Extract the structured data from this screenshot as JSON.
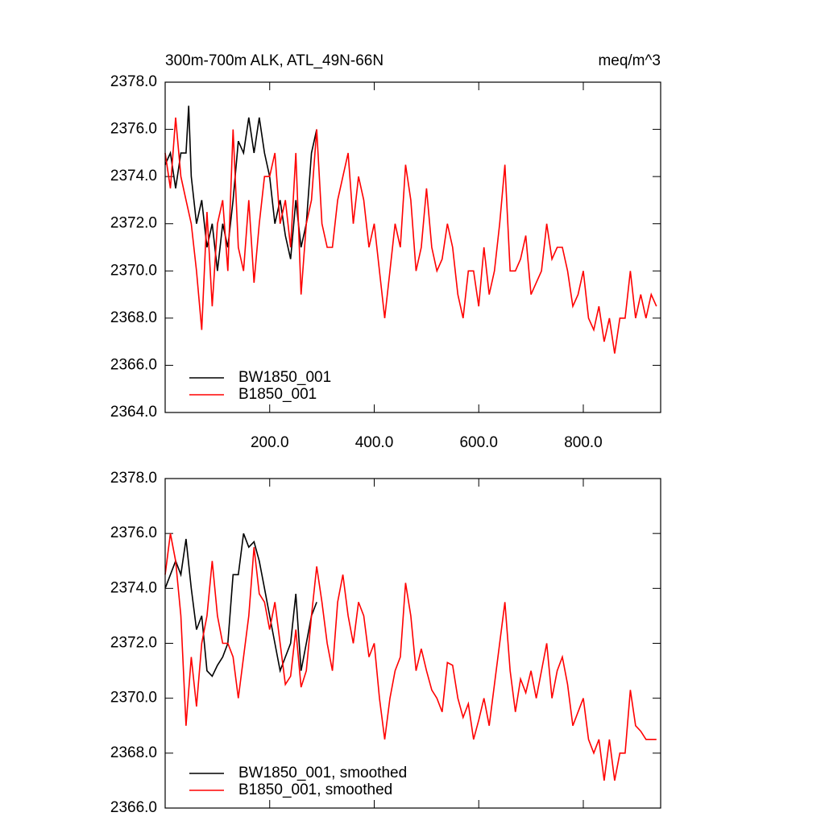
{
  "chart_data": [
    {
      "type": "line",
      "title": "300m-700m ALK, ATL_49N-66N",
      "units": "meq/m^3",
      "xlim": [
        0,
        948
      ],
      "ylim": [
        2364,
        2378
      ],
      "xticks": [
        {
          "value": 200,
          "label": "200.0"
        },
        {
          "value": 400,
          "label": "400.0"
        },
        {
          "value": 600,
          "label": "600.0"
        },
        {
          "value": 800,
          "label": "800.0"
        }
      ],
      "yticks": [
        {
          "value": 2364,
          "label": "2364.0"
        },
        {
          "value": 2366,
          "label": "2366.0"
        },
        {
          "value": 2368,
          "label": "2368.0"
        },
        {
          "value": 2370,
          "label": "2370.0"
        },
        {
          "value": 2372,
          "label": "2372.0"
        },
        {
          "value": 2374,
          "label": "2374.0"
        },
        {
          "value": 2376,
          "label": "2376.0"
        },
        {
          "value": 2378,
          "label": "2378.0"
        }
      ],
      "legend": "lower left",
      "series": [
        {
          "name": "BW1850_001",
          "color": "#000000",
          "x": [
            0,
            10,
            20,
            30,
            40,
            45,
            50,
            60,
            70,
            80,
            90,
            100,
            110,
            120,
            130,
            140,
            150,
            160,
            170,
            180,
            190,
            200,
            210,
            220,
            230,
            240,
            250,
            260,
            270,
            280,
            290
          ],
          "values": [
            2374.5,
            2375,
            2373.5,
            2375,
            2375,
            2377,
            2374,
            2372,
            2373,
            2371,
            2372,
            2370,
            2372,
            2371,
            2373,
            2375.5,
            2375,
            2376.5,
            2375,
            2376.5,
            2375,
            2374,
            2372,
            2373,
            2371.5,
            2370.5,
            2373,
            2371,
            2372,
            2375,
            2376
          ]
        },
        {
          "name": "B1850_001",
          "color": "#ff0000",
          "x": [
            0,
            10,
            20,
            30,
            40,
            50,
            60,
            70,
            80,
            90,
            100,
            110,
            120,
            130,
            140,
            150,
            160,
            170,
            180,
            190,
            200,
            210,
            220,
            230,
            240,
            250,
            260,
            270,
            280,
            290,
            300,
            310,
            320,
            330,
            340,
            350,
            360,
            370,
            380,
            390,
            400,
            410,
            420,
            430,
            440,
            450,
            460,
            470,
            480,
            490,
            500,
            510,
            520,
            530,
            540,
            550,
            560,
            570,
            580,
            590,
            600,
            610,
            620,
            630,
            640,
            650,
            660,
            670,
            680,
            690,
            700,
            710,
            720,
            730,
            740,
            750,
            760,
            770,
            780,
            790,
            800,
            810,
            820,
            830,
            840,
            850,
            860,
            870,
            880,
            890,
            900,
            910,
            920,
            930,
            940
          ],
          "values": [
            2375,
            2373.5,
            2376.5,
            2374,
            2373,
            2372,
            2370,
            2367.5,
            2372.5,
            2368.5,
            2372,
            2373,
            2370,
            2376,
            2371,
            2370,
            2373,
            2369.5,
            2372,
            2374,
            2374,
            2375,
            2372,
            2373,
            2371,
            2375,
            2369,
            2372,
            2373,
            2376,
            2372,
            2371,
            2371,
            2373,
            2374,
            2375,
            2372,
            2374,
            2373,
            2371,
            2372,
            2370,
            2368,
            2370,
            2372,
            2371,
            2374.5,
            2373,
            2370,
            2371,
            2373.5,
            2371,
            2370,
            2370.5,
            2372,
            2371,
            2369,
            2368,
            2370,
            2370,
            2368.5,
            2371,
            2369,
            2370,
            2372,
            2374.5,
            2370,
            2370,
            2370.5,
            2371.5,
            2369,
            2369.5,
            2370,
            2372,
            2370.5,
            2371,
            2371,
            2370,
            2368.5,
            2369,
            2370,
            2368,
            2367.5,
            2368.5,
            2367,
            2368,
            2366.5,
            2368,
            2368,
            2370,
            2368,
            2369,
            2368,
            2369,
            2368.5
          ]
        }
      ]
    },
    {
      "type": "line",
      "xlim": [
        0,
        948
      ],
      "ylim": [
        2366,
        2378
      ],
      "xticks": [
        200,
        400,
        600,
        800
      ],
      "yticks": [
        {
          "value": 2366,
          "label": "2366.0"
        },
        {
          "value": 2368,
          "label": "2368.0"
        },
        {
          "value": 2370,
          "label": "2370.0"
        },
        {
          "value": 2372,
          "label": "2372.0"
        },
        {
          "value": 2374,
          "label": "2374.0"
        },
        {
          "value": 2376,
          "label": "2376.0"
        },
        {
          "value": 2378,
          "label": "2378.0"
        }
      ],
      "legend": "lower left",
      "series": [
        {
          "name": "BW1850_001, smoothed",
          "color": "#000000",
          "x": [
            0,
            10,
            20,
            30,
            40,
            50,
            60,
            70,
            80,
            90,
            100,
            110,
            120,
            130,
            140,
            150,
            160,
            170,
            180,
            190,
            200,
            210,
            220,
            230,
            240,
            250,
            260,
            270,
            280,
            290
          ],
          "values": [
            2374,
            2374.5,
            2375,
            2374.5,
            2375.8,
            2374,
            2372.5,
            2373,
            2371,
            2370.8,
            2371.2,
            2371.5,
            2372,
            2374.5,
            2374.5,
            2376,
            2375.5,
            2375.7,
            2375,
            2374,
            2373,
            2372,
            2371,
            2371.5,
            2372,
            2373.8,
            2371,
            2372,
            2373,
            2373.5
          ]
        },
        {
          "name": "B1850_001, smoothed",
          "color": "#ff0000",
          "x": [
            0,
            10,
            20,
            30,
            40,
            50,
            60,
            70,
            80,
            90,
            100,
            110,
            120,
            130,
            140,
            150,
            160,
            170,
            180,
            190,
            200,
            210,
            220,
            230,
            240,
            250,
            260,
            270,
            280,
            290,
            300,
            310,
            320,
            330,
            340,
            350,
            360,
            370,
            380,
            390,
            400,
            410,
            420,
            430,
            440,
            450,
            460,
            470,
            480,
            490,
            500,
            510,
            520,
            530,
            540,
            550,
            560,
            570,
            580,
            590,
            600,
            610,
            620,
            630,
            640,
            650,
            660,
            670,
            680,
            690,
            700,
            710,
            720,
            730,
            740,
            750,
            760,
            770,
            780,
            790,
            800,
            810,
            820,
            830,
            840,
            850,
            860,
            870,
            880,
            890,
            900,
            910,
            920,
            930,
            940
          ],
          "values": [
            2374.5,
            2376,
            2375,
            2373,
            2369,
            2371.5,
            2369.7,
            2372,
            2373,
            2375,
            2373,
            2372,
            2372,
            2371.5,
            2370,
            2371.5,
            2373,
            2375.5,
            2373.8,
            2373.5,
            2372.5,
            2373.5,
            2372,
            2370.5,
            2370.8,
            2372.5,
            2370.4,
            2371,
            2373,
            2374.8,
            2373.5,
            2372,
            2371,
            2373.5,
            2374.5,
            2373,
            2372,
            2373.5,
            2373,
            2371.5,
            2372,
            2370,
            2368.5,
            2370,
            2371,
            2371.5,
            2374.2,
            2373,
            2371,
            2371.8,
            2371,
            2370.3,
            2370,
            2369.5,
            2371.3,
            2371.2,
            2370,
            2369.3,
            2369.8,
            2368.5,
            2369.2,
            2370,
            2369,
            2370.5,
            2372,
            2373.5,
            2371,
            2369.5,
            2370.7,
            2370.2,
            2371,
            2370,
            2371,
            2372,
            2370,
            2371,
            2371.5,
            2370.5,
            2369,
            2369.5,
            2370,
            2368.5,
            2368,
            2368.5,
            2367,
            2368.5,
            2367,
            2368,
            2368,
            2370.3,
            2369,
            2368.8,
            2368.5,
            2368.5,
            2368.5
          ]
        }
      ]
    }
  ]
}
